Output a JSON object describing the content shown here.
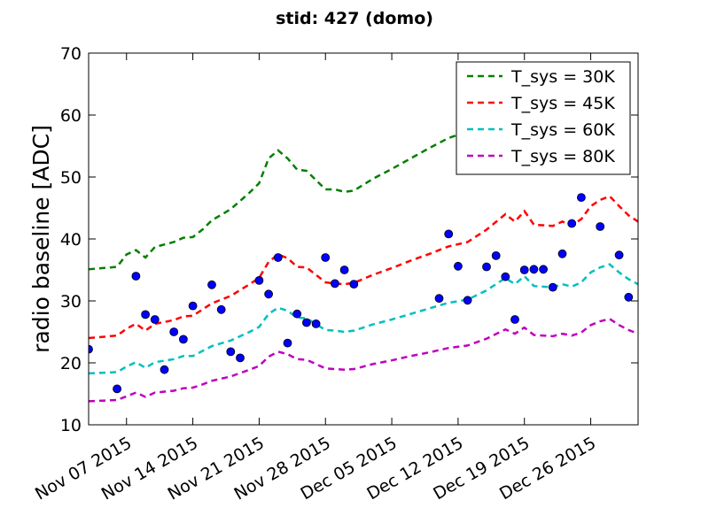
{
  "chart_data": {
    "type": "line",
    "title": "stid: 427 (domo)",
    "xlabel": "",
    "ylabel": "radio baseline [ADC]",
    "ylim": [
      10,
      70
    ],
    "yticks": [
      10,
      20,
      30,
      40,
      50,
      60,
      70
    ],
    "xlim": [
      "2015-11-03",
      "2015-12-31"
    ],
    "xticks": [
      {
        "date": "2015-11-07",
        "label": "Nov 07 2015"
      },
      {
        "date": "2015-11-14",
        "label": "Nov 14 2015"
      },
      {
        "date": "2015-11-21",
        "label": "Nov 21 2015"
      },
      {
        "date": "2015-11-28",
        "label": "Nov 28 2015"
      },
      {
        "date": "2015-12-05",
        "label": "Dec 05 2015"
      },
      {
        "date": "2015-12-12",
        "label": "Dec 12 2015"
      },
      {
        "date": "2015-12-19",
        "label": "Dec 19 2015"
      },
      {
        "date": "2015-12-26",
        "label": "Dec 26 2015"
      }
    ],
    "grid": false,
    "legend_position": "top-right",
    "series": [
      {
        "name": "T_sys = 30K",
        "color": "#008000",
        "style": "dashed",
        "points": [
          [
            "2015-11-03",
            35.1
          ],
          [
            "2015-11-06",
            35.5
          ],
          [
            "2015-11-07",
            37.5
          ],
          [
            "2015-11-08",
            38.2
          ],
          [
            "2015-11-09",
            37.0
          ],
          [
            "2015-11-10",
            38.7
          ],
          [
            "2015-11-12",
            39.5
          ],
          [
            "2015-11-13",
            40.2
          ],
          [
            "2015-11-14",
            40.3
          ],
          [
            "2015-11-15",
            41.5
          ],
          [
            "2015-11-16",
            43.0
          ],
          [
            "2015-11-18",
            44.8
          ],
          [
            "2015-11-20",
            47.5
          ],
          [
            "2015-11-21",
            49.0
          ],
          [
            "2015-11-22",
            53.0
          ],
          [
            "2015-11-23",
            54.3
          ],
          [
            "2015-11-24",
            53.0
          ],
          [
            "2015-11-25",
            51.2
          ],
          [
            "2015-11-26",
            51.0
          ],
          [
            "2015-11-28",
            48.0
          ],
          [
            "2015-11-29",
            48.0
          ],
          [
            "2015-11-30",
            47.6
          ],
          [
            "2015-12-01",
            47.8
          ],
          [
            "2015-12-03",
            49.7
          ],
          [
            "2015-12-05",
            51.3
          ],
          [
            "2015-12-07",
            53.0
          ],
          [
            "2015-12-09",
            54.7
          ],
          [
            "2015-12-11",
            56.3
          ],
          [
            "2015-12-12",
            56.8
          ]
        ]
      },
      {
        "name": "T_sys = 45K",
        "color": "#ff0000",
        "style": "dashed",
        "points": [
          [
            "2015-11-03",
            24.0
          ],
          [
            "2015-11-06",
            24.4
          ],
          [
            "2015-11-07",
            25.5
          ],
          [
            "2015-11-08",
            26.3
          ],
          [
            "2015-11-09",
            25.2
          ],
          [
            "2015-11-10",
            26.3
          ],
          [
            "2015-11-12",
            26.9
          ],
          [
            "2015-11-13",
            27.5
          ],
          [
            "2015-11-14",
            27.6
          ],
          [
            "2015-11-15",
            28.6
          ],
          [
            "2015-11-16",
            29.6
          ],
          [
            "2015-11-18",
            30.8
          ],
          [
            "2015-11-20",
            32.7
          ],
          [
            "2015-11-21",
            33.7
          ],
          [
            "2015-11-22",
            36.3
          ],
          [
            "2015-11-23",
            37.5
          ],
          [
            "2015-11-24",
            36.9
          ],
          [
            "2015-11-25",
            35.5
          ],
          [
            "2015-11-26",
            35.4
          ],
          [
            "2015-11-28",
            33.0
          ],
          [
            "2015-11-29",
            32.8
          ],
          [
            "2015-11-30",
            32.7
          ],
          [
            "2015-12-01",
            32.9
          ],
          [
            "2015-12-03",
            34.2
          ],
          [
            "2015-12-05",
            35.3
          ],
          [
            "2015-12-07",
            36.5
          ],
          [
            "2015-12-09",
            37.6
          ],
          [
            "2015-12-11",
            38.8
          ],
          [
            "2015-12-13",
            39.5
          ],
          [
            "2015-12-15",
            41.5
          ],
          [
            "2015-12-17",
            44.0
          ],
          [
            "2015-12-18",
            42.8
          ],
          [
            "2015-12-19",
            44.5
          ],
          [
            "2015-12-20",
            42.3
          ],
          [
            "2015-12-22",
            42.1
          ],
          [
            "2015-12-23",
            42.8
          ],
          [
            "2015-12-24",
            42.2
          ],
          [
            "2015-12-25",
            43.2
          ],
          [
            "2015-12-26",
            45.3
          ],
          [
            "2015-12-27",
            46.3
          ],
          [
            "2015-12-28",
            46.9
          ],
          [
            "2015-12-29",
            45.3
          ],
          [
            "2015-12-30",
            43.8
          ],
          [
            "2015-12-31",
            42.8
          ],
          [
            "2016-01-01",
            41.3
          ],
          [
            "2016-01-02",
            39.4
          ]
        ]
      },
      {
        "name": "T_sys = 60K",
        "color": "#00bfbf",
        "style": "dashed",
        "points": [
          [
            "2015-11-03",
            18.3
          ],
          [
            "2015-11-06",
            18.5
          ],
          [
            "2015-11-07",
            19.4
          ],
          [
            "2015-11-08",
            20.1
          ],
          [
            "2015-11-09",
            19.2
          ],
          [
            "2015-11-10",
            20.1
          ],
          [
            "2015-11-12",
            20.6
          ],
          [
            "2015-11-13",
            21.1
          ],
          [
            "2015-11-14",
            21.1
          ],
          [
            "2015-11-15",
            21.9
          ],
          [
            "2015-11-16",
            22.7
          ],
          [
            "2015-11-18",
            23.6
          ],
          [
            "2015-11-20",
            25.0
          ],
          [
            "2015-11-21",
            25.8
          ],
          [
            "2015-11-22",
            27.9
          ],
          [
            "2015-11-23",
            28.9
          ],
          [
            "2015-11-24",
            28.4
          ],
          [
            "2015-11-25",
            27.3
          ],
          [
            "2015-11-26",
            27.2
          ],
          [
            "2015-11-28",
            25.3
          ],
          [
            "2015-11-29",
            25.2
          ],
          [
            "2015-11-30",
            25.0
          ],
          [
            "2015-12-01",
            25.2
          ],
          [
            "2015-12-03",
            26.2
          ],
          [
            "2015-12-05",
            27.0
          ],
          [
            "2015-12-07",
            27.9
          ],
          [
            "2015-12-09",
            28.8
          ],
          [
            "2015-12-11",
            29.7
          ],
          [
            "2015-12-13",
            30.2
          ],
          [
            "2015-12-15",
            31.7
          ],
          [
            "2015-12-17",
            33.7
          ],
          [
            "2015-12-18",
            32.7
          ],
          [
            "2015-12-19",
            34.0
          ],
          [
            "2015-12-20",
            32.4
          ],
          [
            "2015-12-22",
            32.2
          ],
          [
            "2015-12-23",
            32.7
          ],
          [
            "2015-12-24",
            32.3
          ],
          [
            "2015-12-25",
            33.0
          ],
          [
            "2015-12-26",
            34.6
          ],
          [
            "2015-12-27",
            35.4
          ],
          [
            "2015-12-28",
            35.9
          ],
          [
            "2015-12-29",
            34.6
          ],
          [
            "2015-12-30",
            33.5
          ],
          [
            "2015-12-31",
            32.7
          ],
          [
            "2016-01-01",
            31.6
          ],
          [
            "2016-01-02",
            30.1
          ]
        ]
      },
      {
        "name": "T_sys = 80K",
        "color": "#bf00bf",
        "style": "dashed",
        "points": [
          [
            "2015-11-03",
            13.8
          ],
          [
            "2015-11-06",
            14.0
          ],
          [
            "2015-11-07",
            14.6
          ],
          [
            "2015-11-08",
            15.2
          ],
          [
            "2015-11-09",
            14.5
          ],
          [
            "2015-11-10",
            15.2
          ],
          [
            "2015-11-12",
            15.5
          ],
          [
            "2015-11-13",
            15.9
          ],
          [
            "2015-11-14",
            16.0
          ],
          [
            "2015-11-15",
            16.5
          ],
          [
            "2015-11-16",
            17.1
          ],
          [
            "2015-11-18",
            17.8
          ],
          [
            "2015-11-20",
            18.9
          ],
          [
            "2015-11-21",
            19.5
          ],
          [
            "2015-11-22",
            21.0
          ],
          [
            "2015-11-23",
            21.8
          ],
          [
            "2015-11-24",
            21.4
          ],
          [
            "2015-11-25",
            20.6
          ],
          [
            "2015-11-26",
            20.5
          ],
          [
            "2015-11-28",
            19.1
          ],
          [
            "2015-11-29",
            19.0
          ],
          [
            "2015-11-30",
            18.9
          ],
          [
            "2015-12-01",
            19.0
          ],
          [
            "2015-12-03",
            19.8
          ],
          [
            "2015-12-05",
            20.4
          ],
          [
            "2015-12-07",
            21.1
          ],
          [
            "2015-12-09",
            21.7
          ],
          [
            "2015-12-11",
            22.4
          ],
          [
            "2015-12-13",
            22.8
          ],
          [
            "2015-12-15",
            23.9
          ],
          [
            "2015-12-17",
            25.4
          ],
          [
            "2015-12-18",
            24.7
          ],
          [
            "2015-12-19",
            25.7
          ],
          [
            "2015-12-20",
            24.5
          ],
          [
            "2015-12-22",
            24.3
          ],
          [
            "2015-12-23",
            24.7
          ],
          [
            "2015-12-24",
            24.4
          ],
          [
            "2015-12-25",
            24.9
          ],
          [
            "2015-12-26",
            26.1
          ],
          [
            "2015-12-27",
            26.7
          ],
          [
            "2015-12-28",
            27.1
          ],
          [
            "2015-12-29",
            26.1
          ],
          [
            "2015-12-30",
            25.3
          ],
          [
            "2015-12-31",
            24.7
          ],
          [
            "2016-01-01",
            23.8
          ],
          [
            "2016-01-02",
            22.7
          ]
        ]
      }
    ],
    "scatter": {
      "color": "#0000ff",
      "points": [
        [
          "2015-11-03",
          22.2
        ],
        [
          "2015-11-06",
          15.8
        ],
        [
          "2015-11-08",
          34.0
        ],
        [
          "2015-11-09",
          27.8
        ],
        [
          "2015-11-10",
          27.0
        ],
        [
          "2015-11-11",
          18.9
        ],
        [
          "2015-11-12",
          25.0
        ],
        [
          "2015-11-13",
          23.8
        ],
        [
          "2015-11-14",
          29.2
        ],
        [
          "2015-11-16",
          32.6
        ],
        [
          "2015-11-17",
          28.6
        ],
        [
          "2015-11-18",
          21.8
        ],
        [
          "2015-11-19",
          20.8
        ],
        [
          "2015-11-21",
          33.3
        ],
        [
          "2015-11-22",
          31.1
        ],
        [
          "2015-11-23",
          37.0
        ],
        [
          "2015-11-24",
          23.2
        ],
        [
          "2015-11-25",
          27.9
        ],
        [
          "2015-11-26",
          26.5
        ],
        [
          "2015-11-27",
          26.3
        ],
        [
          "2015-11-28",
          37.0
        ],
        [
          "2015-11-29",
          32.8
        ],
        [
          "2015-11-30",
          35.0
        ],
        [
          "2015-12-01",
          32.7
        ],
        [
          "2015-12-10",
          30.4
        ],
        [
          "2015-12-11",
          40.8
        ],
        [
          "2015-12-12",
          35.6
        ],
        [
          "2015-12-13",
          30.1
        ],
        [
          "2015-12-15",
          35.5
        ],
        [
          "2015-12-16",
          37.3
        ],
        [
          "2015-12-17",
          33.9
        ],
        [
          "2015-12-18",
          27.0
        ],
        [
          "2015-12-19",
          35.0
        ],
        [
          "2015-12-20",
          35.1
        ],
        [
          "2015-12-21",
          35.1
        ],
        [
          "2015-12-22",
          32.2
        ],
        [
          "2015-12-23",
          37.6
        ],
        [
          "2015-12-24",
          42.5
        ],
        [
          "2015-12-25",
          46.7
        ],
        [
          "2015-12-27",
          42.0
        ],
        [
          "2015-12-29",
          37.4
        ],
        [
          "2015-12-30",
          30.6
        ]
      ]
    }
  }
}
